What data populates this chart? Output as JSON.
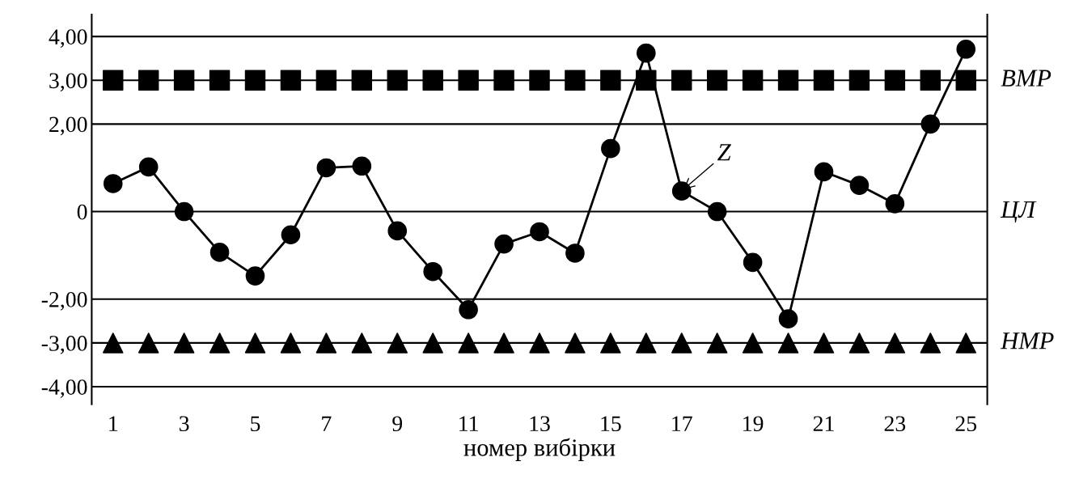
{
  "chart_data": {
    "type": "line",
    "xlabel": "номер вибірки",
    "categories": [
      "1",
      null,
      "3",
      null,
      "5",
      null,
      "7",
      null,
      "9",
      null,
      "11",
      null,
      "13",
      null,
      "15",
      null,
      "17",
      null,
      "19",
      null,
      "21",
      null,
      "23",
      null,
      "25"
    ],
    "series": [
      {
        "type": "scatter",
        "marker": "square",
        "color": "#000000",
        "values": [
          3,
          3,
          3,
          3,
          3,
          3,
          3,
          3,
          3,
          3,
          3,
          3,
          3,
          3,
          3,
          3,
          3,
          3,
          3,
          3,
          3,
          3,
          3,
          3,
          3
        ]
      },
      {
        "type": "scatter",
        "marker": "triangle",
        "color": "#000000",
        "values": [
          -3,
          -3,
          -3,
          -3,
          -3,
          -3,
          -3,
          -3,
          -3,
          -3,
          -3,
          -3,
          -3,
          -3,
          -3,
          -3,
          -3,
          -3,
          -3,
          -3,
          -3,
          -3,
          -3,
          -3,
          -3
        ]
      },
      {
        "marker": "circle",
        "line_style": "solid",
        "color": "#000000",
        "values": [
          0.64,
          1.02,
          0,
          -0.93,
          -1.47,
          -0.53,
          1.0,
          1.04,
          -0.44,
          -1.37,
          -2.24,
          -0.74,
          -0.46,
          -0.95,
          1.44,
          3.62,
          0.47,
          0,
          -1.16,
          -2.45,
          0.91,
          0.6,
          0.18,
          2.0,
          3.71
        ]
      }
    ],
    "ylim": [
      -4.4,
      4.5
    ],
    "yticks": [
      {
        "value": 4,
        "label": "4,00"
      },
      {
        "value": 3,
        "label": "3,00"
      },
      {
        "value": 2,
        "label": "2,00"
      },
      0,
      {
        "value": -2,
        "label": "-2,00"
      },
      {
        "value": -3,
        "label": "-3,00"
      },
      {
        "value": -4,
        "label": "-4,00"
      }
    ],
    "ref_lines": [
      {
        "axis": "y",
        "value": 4
      },
      {
        "axis": "y",
        "value": 3,
        "label": "ВМР"
      },
      {
        "axis": "y",
        "value": 2
      },
      {
        "axis": "y",
        "value": 0,
        "label": "ЦЛ"
      },
      {
        "axis": "y",
        "value": -2
      },
      {
        "axis": "y",
        "value": -3,
        "label": "НМР"
      },
      {
        "axis": "y",
        "value": -4
      }
    ],
    "annotations": [
      {
        "text": "Z",
        "x": "17",
        "y": 0.47
      }
    ]
  }
}
